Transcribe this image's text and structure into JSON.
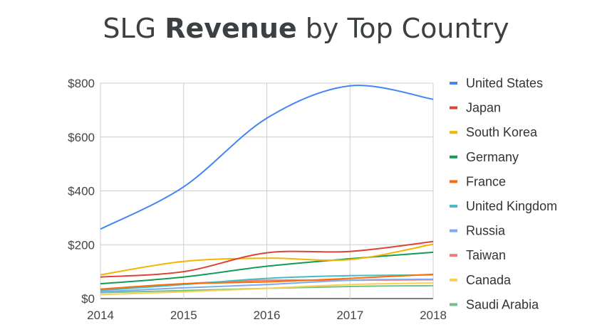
{
  "chart_data": {
    "type": "line",
    "title_prefix": "SLG ",
    "title_bold": "Revenue",
    "title_suffix": " by Top Country",
    "x": [
      2014,
      2015,
      2016,
      2017,
      2018
    ],
    "x_tick_labels": [
      "2014",
      "2015",
      "2016",
      "2017",
      "2018"
    ],
    "y_tick_labels": [
      "$0",
      "$200",
      "$400",
      "$600",
      "$800"
    ],
    "y_ticks": [
      0,
      200,
      400,
      600,
      800
    ],
    "ylim": [
      0,
      800
    ],
    "grid": true,
    "legend_position": "right",
    "series": [
      {
        "name": "United States",
        "color": "#4285f4",
        "values": [
          258,
          415,
          670,
          790,
          740
        ]
      },
      {
        "name": "Japan",
        "color": "#db4437",
        "values": [
          80,
          100,
          170,
          175,
          212
        ]
      },
      {
        "name": "South Korea",
        "color": "#f4b400",
        "values": [
          88,
          138,
          150,
          145,
          202
        ]
      },
      {
        "name": "Germany",
        "color": "#0f9d58",
        "values": [
          55,
          80,
          120,
          148,
          172
        ]
      },
      {
        "name": "France",
        "color": "#ff6d01",
        "values": [
          35,
          55,
          62,
          75,
          90
        ]
      },
      {
        "name": "United Kingdom",
        "color": "#46bdc6",
        "values": [
          30,
          52,
          75,
          85,
          88
        ]
      },
      {
        "name": "Russia",
        "color": "#7baaf7",
        "values": [
          25,
          40,
          52,
          68,
          72
        ]
      },
      {
        "name": "Taiwan",
        "color": "#f07b72",
        "values": [
          32,
          55,
          68,
          68,
          70
        ]
      },
      {
        "name": "Canada",
        "color": "#fcd04f",
        "values": [
          15,
          25,
          38,
          52,
          58
        ]
      },
      {
        "name": "Saudi Arabia",
        "color": "#71c287",
        "values": [
          22,
          30,
          38,
          45,
          48
        ]
      }
    ]
  }
}
